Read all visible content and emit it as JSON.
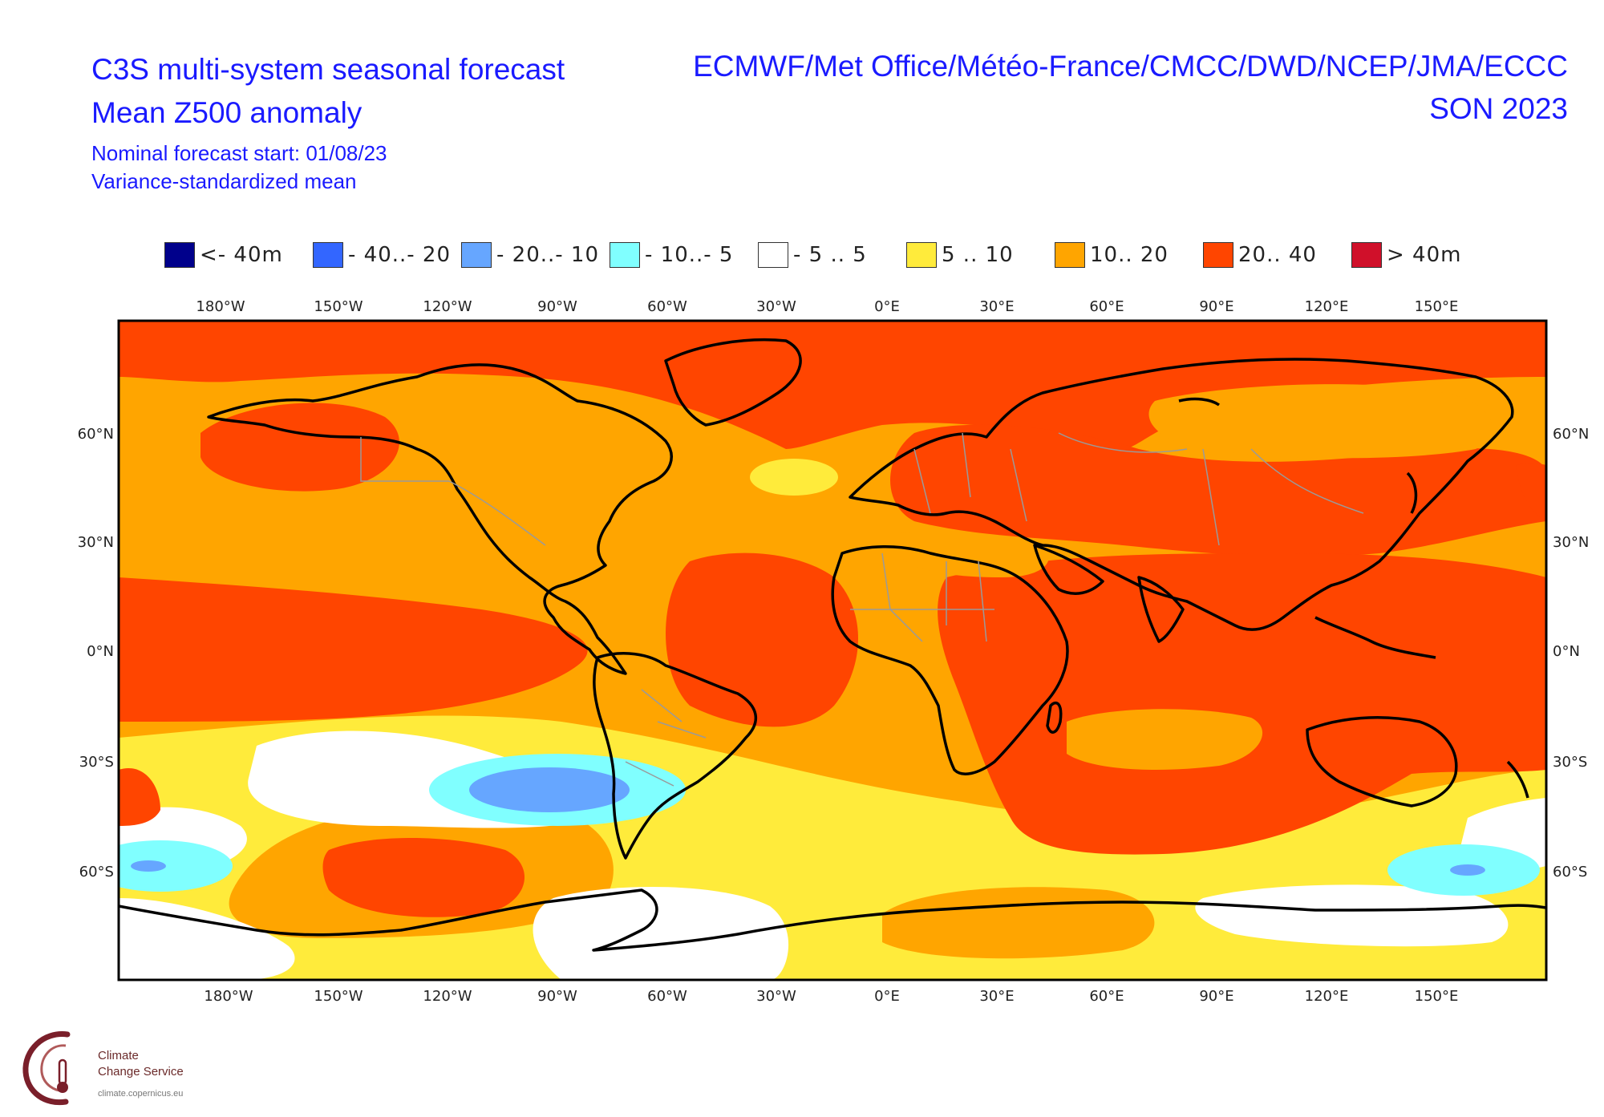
{
  "header": {
    "title_line1": "C3S multi-system seasonal forecast",
    "title_line2": "Mean Z500 anomaly",
    "subtitle_line1": "Nominal forecast start: 01/08/23",
    "subtitle_line2": "Variance-standardized mean",
    "centres": "ECMWF/Met Office/Météo-France/CMCC/DWD/NCEP/JMA/ECCC",
    "season": "SON 2023"
  },
  "legend": [
    {
      "label": "<- 40m",
      "color": "#00008b"
    },
    {
      "label": "- 40..- 20",
      "color": "#3366ff"
    },
    {
      "label": "- 20..- 10",
      "color": "#66a6ff"
    },
    {
      "label": "- 10..- 5",
      "color": "#80ffff"
    },
    {
      "label": "- 5 .. 5",
      "color": "#ffffff"
    },
    {
      "label": "5 .. 10",
      "color": "#ffeb3b"
    },
    {
      "label": "10.. 20",
      "color": "#ffa500"
    },
    {
      "label": "20.. 40",
      "color": "#ff4500"
    },
    {
      "label": "> 40m",
      "color": "#d0102a"
    }
  ],
  "map": {
    "projection": "equirectangular, centred on 0°E",
    "lon_range": [
      -210,
      180
    ],
    "lat_range": [
      -90,
      90
    ],
    "lon_ticks": [
      "180°W",
      "150°W",
      "120°W",
      "90°W",
      "60°W",
      "30°W",
      "0°E",
      "30°E",
      "60°E",
      "90°E",
      "120°E",
      "150°E"
    ],
    "lat_ticks": [
      "60°N",
      "30°N",
      "0°N",
      "30°S",
      "60°S"
    ],
    "coastline_color": "#000000",
    "border_color": "#9a9a9a"
  },
  "logo": {
    "line1": "Climate",
    "line2": "Change Service",
    "url_text": "climate.copernicus.eu",
    "icon": "thermometer-icon"
  }
}
